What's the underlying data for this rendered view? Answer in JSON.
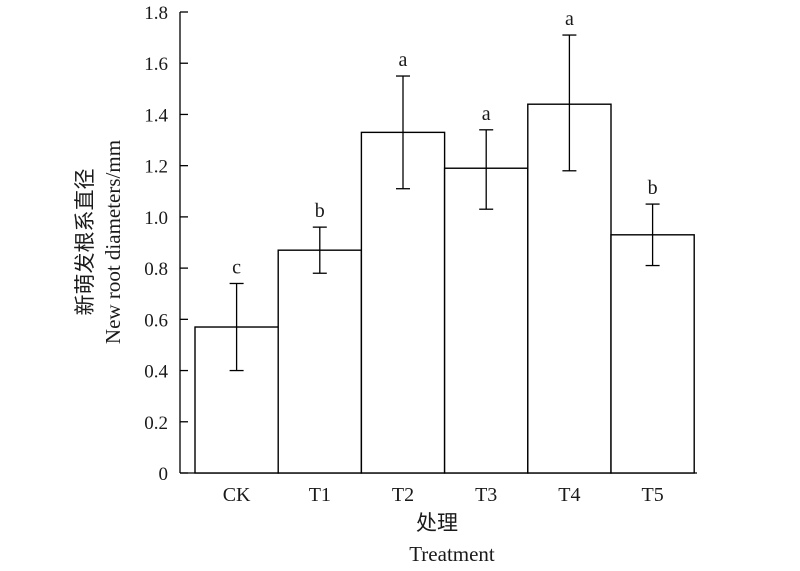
{
  "chart_data": {
    "type": "bar",
    "categories": [
      "CK",
      "T1",
      "T2",
      "T3",
      "T4",
      "T5"
    ],
    "values": [
      0.57,
      0.87,
      1.33,
      1.19,
      1.44,
      0.93
    ],
    "error_upper": [
      0.74,
      0.96,
      1.55,
      1.34,
      1.71,
      1.05
    ],
    "error_lower": [
      0.4,
      0.78,
      1.11,
      1.03,
      1.18,
      0.81
    ],
    "significance": [
      "c",
      "b",
      "a",
      "a",
      "a",
      "b"
    ],
    "ylim": [
      0,
      1.8
    ],
    "yticks": [
      "0",
      "0.2",
      "0.4",
      "0.6",
      "0.8",
      "1.0",
      "1.2",
      "1.4",
      "1.6",
      "1.8"
    ],
    "ytick_values": [
      0,
      0.2,
      0.4,
      0.6,
      0.8,
      1.0,
      1.2,
      1.4,
      1.6,
      1.8
    ],
    "ylabel_cn": "新萌发根系直径",
    "ylabel_en": "New root diameters/mm",
    "xlabel_cn": "处理",
    "xlabel_en": "Treatment",
    "grid": false,
    "bar_color": "#ffffff",
    "edge_color": "#000000"
  }
}
